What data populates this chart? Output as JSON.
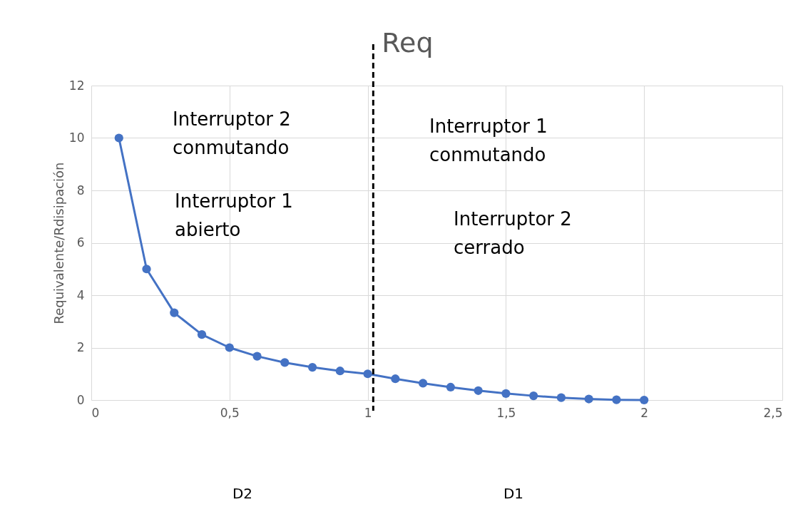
{
  "chart_data": {
    "type": "line",
    "ylabel": "Requivalente/Rdisipación",
    "x": [
      0.1,
      0.2,
      0.3,
      0.4,
      0.5,
      0.6,
      0.7,
      0.8,
      0.9,
      1.0,
      1.1,
      1.2,
      1.3,
      1.4,
      1.5,
      1.6,
      1.7,
      1.8,
      1.9,
      2.0
    ],
    "series": [
      {
        "color": "#4472c4",
        "values": [
          10,
          5,
          3.33,
          2.5,
          2,
          1.67,
          1.43,
          1.25,
          1.11,
          1,
          0.81,
          0.64,
          0.49,
          0.36,
          0.25,
          0.16,
          0.09,
          0.04,
          0.01,
          0
        ]
      }
    ],
    "xlim": [
      0,
      2.5
    ],
    "xticks": [
      {
        "value": 0,
        "label": "0"
      },
      {
        "value": 0.5,
        "label": "0,5"
      },
      {
        "value": 1,
        "label": "1"
      },
      {
        "value": 1.5,
        "label": "1,5"
      },
      {
        "value": 2,
        "label": "2"
      },
      {
        "value": 2.5,
        "label": "2,5"
      }
    ],
    "ylim": [
      0,
      12
    ],
    "yticks": [
      0,
      2,
      4,
      6,
      8,
      10,
      12
    ],
    "ref_lines": [
      {
        "axis": "x",
        "value": 1.02,
        "label": "Req",
        "color": "#000000",
        "line_style": "dashed"
      }
    ],
    "annotations": [
      "Interruptor 2\nconmutando",
      "Interruptor 1\nabierto",
      "Interruptor 1\nconmutando",
      "Interruptor 2\ncerrado",
      "D2",
      "D1"
    ],
    "grid": true,
    "marker": "circle",
    "line_style": "solid"
  }
}
